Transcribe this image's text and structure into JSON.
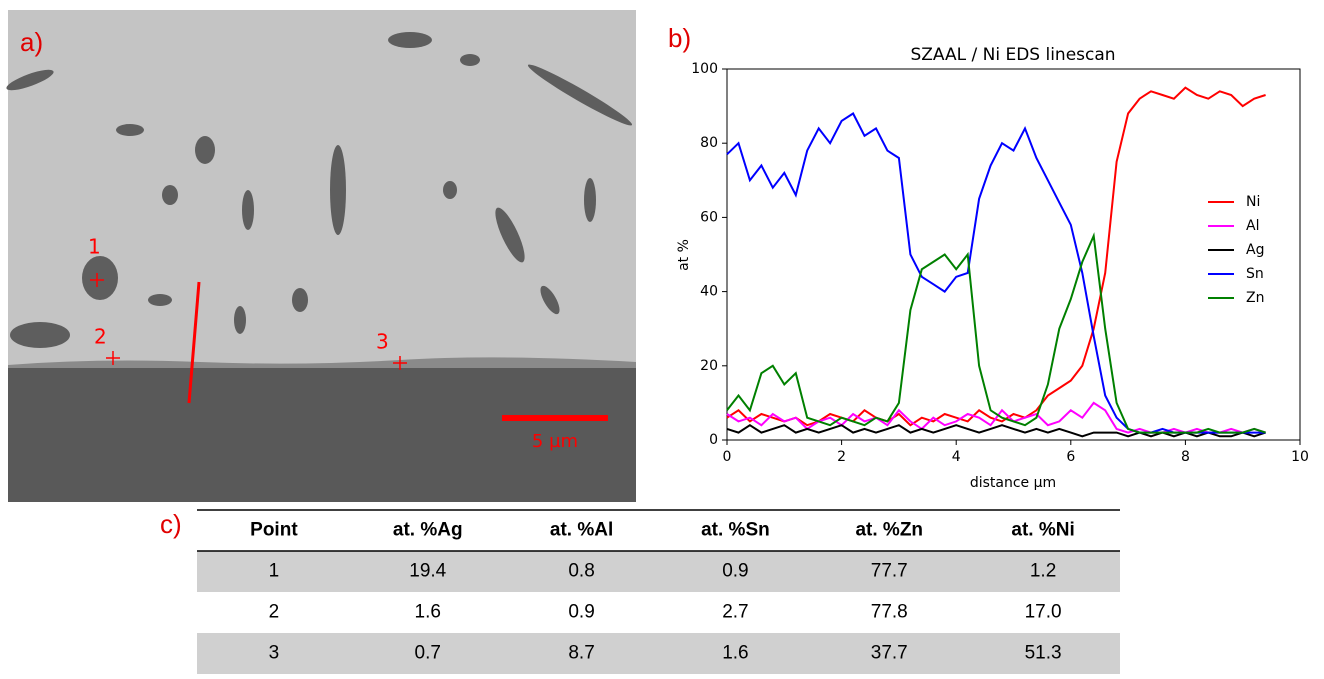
{
  "panels": {
    "a": "a)",
    "b": "b)",
    "c": "c)"
  },
  "image": {
    "points": [
      "1",
      "2",
      "3"
    ],
    "scale_bar": "5 µm"
  },
  "chart_data": {
    "type": "line",
    "title": "SZAAL / Ni EDS linescan",
    "x_label": "distance µm",
    "y_label": "at %",
    "x": [
      0.0,
      0.2,
      0.4,
      0.6,
      0.8,
      1.0,
      1.2,
      1.4,
      1.6,
      1.8,
      2.0,
      2.2,
      2.4,
      2.6,
      2.8,
      3.0,
      3.2,
      3.4,
      3.6,
      3.8,
      4.0,
      4.2,
      4.4,
      4.6,
      4.8,
      5.0,
      5.2,
      5.4,
      5.6,
      5.8,
      6.0,
      6.2,
      6.4,
      6.6,
      6.8,
      7.0,
      7.2,
      7.4,
      7.6,
      7.8,
      8.0,
      8.2,
      8.4,
      8.6,
      8.8,
      9.0,
      9.2,
      9.4
    ],
    "series": [
      {
        "name": "Ni",
        "color": "#ff0000",
        "values": [
          6,
          8,
          5,
          7,
          6,
          5,
          6,
          4,
          5,
          7,
          6,
          5,
          8,
          6,
          5,
          7,
          4,
          6,
          5,
          7,
          6,
          5,
          8,
          6,
          5,
          7,
          6,
          8,
          12,
          14,
          16,
          20,
          30,
          45,
          75,
          88,
          92,
          94,
          93,
          92,
          95,
          93,
          92,
          94,
          93,
          90,
          92,
          93
        ]
      },
      {
        "name": "Al",
        "color": "#ff00ff",
        "values": [
          7,
          5,
          6,
          4,
          7,
          5,
          6,
          3,
          5,
          6,
          4,
          7,
          5,
          6,
          4,
          8,
          5,
          3,
          6,
          4,
          5,
          7,
          6,
          4,
          8,
          5,
          6,
          7,
          4,
          5,
          8,
          6,
          10,
          8,
          3,
          2,
          3,
          2,
          2,
          3,
          2,
          3,
          2,
          2,
          3,
          2,
          3,
          2
        ]
      },
      {
        "name": "Ag",
        "color": "#000000",
        "values": [
          3,
          2,
          4,
          2,
          3,
          4,
          2,
          3,
          2,
          3,
          4,
          2,
          3,
          2,
          3,
          4,
          2,
          3,
          2,
          3,
          4,
          3,
          2,
          3,
          4,
          3,
          2,
          3,
          2,
          3,
          2,
          1,
          2,
          2,
          2,
          1,
          2,
          1,
          2,
          1,
          2,
          1,
          2,
          1,
          1,
          2,
          1,
          2
        ]
      },
      {
        "name": "Sn",
        "color": "#0000ff",
        "values": [
          77,
          80,
          70,
          74,
          68,
          72,
          66,
          78,
          84,
          80,
          86,
          88,
          82,
          84,
          78,
          76,
          50,
          44,
          42,
          40,
          44,
          45,
          65,
          74,
          80,
          78,
          84,
          76,
          70,
          64,
          58,
          45,
          28,
          12,
          6,
          3,
          2,
          2,
          3,
          2,
          2,
          2,
          2,
          2,
          2,
          2,
          2,
          2
        ]
      },
      {
        "name": "Zn",
        "color": "#008000",
        "values": [
          8,
          12,
          8,
          18,
          20,
          15,
          18,
          6,
          5,
          4,
          6,
          5,
          4,
          6,
          5,
          10,
          35,
          46,
          48,
          50,
          46,
          50,
          20,
          8,
          6,
          5,
          4,
          6,
          15,
          30,
          38,
          48,
          55,
          30,
          10,
          3,
          2,
          2,
          2,
          2,
          2,
          2,
          3,
          2,
          2,
          2,
          3,
          2
        ]
      }
    ],
    "xlim": [
      0,
      10
    ],
    "ylim": [
      0,
      100
    ],
    "xticks": [
      0,
      2,
      4,
      6,
      8,
      10
    ],
    "yticks": [
      0,
      20,
      40,
      60,
      80,
      100
    ],
    "grid": false,
    "legend": "right"
  },
  "table": {
    "header": [
      "Point",
      "at. %Ag",
      "at. %Al",
      "at. %Sn",
      "at. %Zn",
      "at. %Ni"
    ],
    "rows": [
      [
        "1",
        "19.4",
        "0.8",
        "0.9",
        "77.7",
        "1.2"
      ],
      [
        "2",
        "1.6",
        "0.9",
        "2.7",
        "77.8",
        "17.0"
      ],
      [
        "3",
        "0.7",
        "8.7",
        "1.6",
        "37.7",
        "51.3"
      ]
    ]
  }
}
